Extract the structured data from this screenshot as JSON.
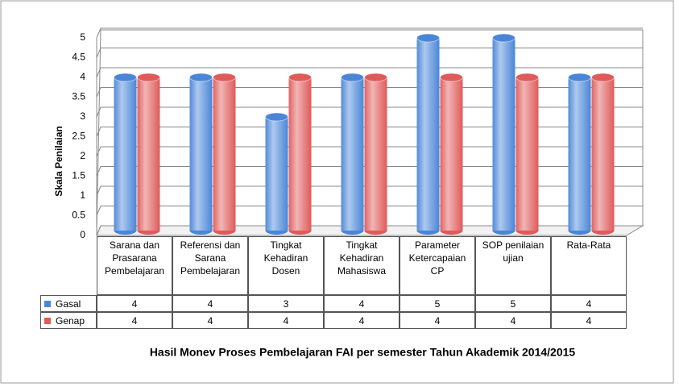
{
  "chart_data": {
    "type": "bar",
    "title": "Hasil Monev Proses Pembelajaran FAI per semester Tahun Akademik 2014/2015",
    "y_label": "Skala Penilaian",
    "categories": [
      "Sarana dan Prasarana Pembelajaran",
      "Referensi dan Sarana Pembelajaran",
      "Tingkat Kehadiran Dosen",
      "Tingkat Kehadiran Mahasiswa",
      "Parameter Ketercapaian CP",
      "SOP penilaian ujian",
      "Rata-Rata"
    ],
    "series": [
      {
        "name": "Gasal",
        "color": "#4a86d8",
        "values": [
          4,
          4,
          3,
          4,
          5,
          5,
          4
        ]
      },
      {
        "name": "Genap",
        "color": "#e05a5a",
        "values": [
          4,
          4,
          4,
          4,
          4,
          4,
          4
        ]
      }
    ],
    "ylim": [
      0,
      5
    ],
    "yticks": [
      0,
      0.5,
      1,
      1.5,
      2,
      2.5,
      3,
      3.5,
      4,
      4.5,
      5
    ],
    "grid": true,
    "data_table": true
  }
}
